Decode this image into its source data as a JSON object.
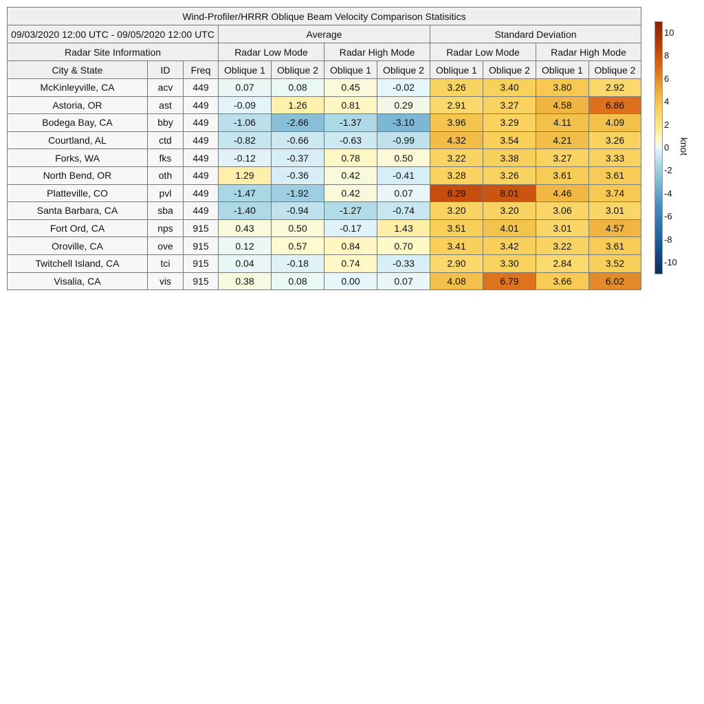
{
  "chart_data": {
    "type": "heatmap",
    "title": "Wind-Profiler/HRRR Oblique Beam Velocity Comparison Statisitics",
    "period": "09/03/2020 12:00 UTC - 09/05/2020 12:00 UTC",
    "group_headers": [
      "Average",
      "Standard Deviation"
    ],
    "mode_headers": [
      "Radar Low Mode",
      "Radar High Mode",
      "Radar Low Mode",
      "Radar High Mode"
    ],
    "info_header": "Radar Site Information",
    "column_headers": [
      "City & State",
      "ID",
      "Freq",
      "Oblique 1",
      "Oblique 2",
      "Oblique 1",
      "Oblique 2",
      "Oblique 1",
      "Oblique 2",
      "Oblique 1",
      "Oblique 2"
    ],
    "rows": [
      {
        "city": "McKinleyville, CA",
        "id": "acv",
        "freq": "449",
        "values": [
          "0.07",
          "0.08",
          "0.45",
          "-0.02",
          "3.26",
          "3.40",
          "3.80",
          "2.92"
        ]
      },
      {
        "city": "Astoria, OR",
        "id": "ast",
        "freq": "449",
        "values": [
          "-0.09",
          "1.26",
          "0.81",
          "0.29",
          "2.91",
          "3.27",
          "4.58",
          "6.86"
        ]
      },
      {
        "city": "Bodega Bay, CA",
        "id": "bby",
        "freq": "449",
        "values": [
          "-1.06",
          "-2.66",
          "-1.37",
          "-3.10",
          "3.96",
          "3.29",
          "4.11",
          "4.09"
        ]
      },
      {
        "city": "Courtland, AL",
        "id": "ctd",
        "freq": "449",
        "values": [
          "-0.82",
          "-0.66",
          "-0.63",
          "-0.99",
          "4.32",
          "3.54",
          "4.21",
          "3.26"
        ]
      },
      {
        "city": "Forks, WA",
        "id": "fks",
        "freq": "449",
        "values": [
          "-0.12",
          "-0.37",
          "0.78",
          "0.50",
          "3.22",
          "3.38",
          "3.27",
          "3.33"
        ]
      },
      {
        "city": "North Bend, OR",
        "id": "oth",
        "freq": "449",
        "values": [
          "1.29",
          "-0.36",
          "0.42",
          "-0.41",
          "3.28",
          "3.26",
          "3.61",
          "3.61"
        ]
      },
      {
        "city": "Platteville, CO",
        "id": "pvl",
        "freq": "449",
        "values": [
          "-1.47",
          "-1.92",
          "0.42",
          "0.07",
          "8.29",
          "8.01",
          "4.46",
          "3.74"
        ]
      },
      {
        "city": "Santa Barbara, CA",
        "id": "sba",
        "freq": "449",
        "values": [
          "-1.40",
          "-0.94",
          "-1.27",
          "-0.74",
          "3.20",
          "3.20",
          "3.06",
          "3.01"
        ]
      },
      {
        "city": "Fort Ord, CA",
        "id": "nps",
        "freq": "915",
        "values": [
          "0.43",
          "0.50",
          "-0.17",
          "1.43",
          "3.51",
          "4.01",
          "3.01",
          "4.57"
        ]
      },
      {
        "city": "Oroville, CA",
        "id": "ove",
        "freq": "915",
        "values": [
          "0.12",
          "0.57",
          "0.84",
          "0.70",
          "3.41",
          "3.42",
          "3.22",
          "3.61"
        ]
      },
      {
        "city": "Twitchell Island, CA",
        "id": "tci",
        "freq": "915",
        "values": [
          "0.04",
          "-0.18",
          "0.74",
          "-0.33",
          "2.90",
          "3.30",
          "2.84",
          "3.52"
        ]
      },
      {
        "city": "Visalia, CA",
        "id": "vis",
        "freq": "915",
        "values": [
          "0.38",
          "0.08",
          "0.00",
          "0.07",
          "4.08",
          "6.79",
          "3.66",
          "6.02"
        ]
      }
    ],
    "colorbar": {
      "unit": "knot",
      "range": [
        -11,
        11
      ],
      "ticks": [
        "10",
        "8",
        "6",
        "4",
        "2",
        "0",
        "-2",
        "-4",
        "-6",
        "-8",
        "-10"
      ],
      "tick_values": [
        10,
        8,
        6,
        4,
        2,
        0,
        -2,
        -4,
        -6,
        -8,
        -10
      ],
      "colormap": [
        {
          "v": -11,
          "c": "#0c2d5a"
        },
        {
          "v": -8,
          "c": "#1f5f9a"
        },
        {
          "v": -5,
          "c": "#4a8fc0"
        },
        {
          "v": -3,
          "c": "#7fb9d6"
        },
        {
          "v": -1.5,
          "c": "#a9d6e5"
        },
        {
          "v": 0,
          "c": "#e6f6fb"
        },
        {
          "v": 0.6,
          "c": "#fffacd"
        },
        {
          "v": 2,
          "c": "#fde58a"
        },
        {
          "v": 3.5,
          "c": "#f8cf58"
        },
        {
          "v": 5,
          "c": "#ecab36"
        },
        {
          "v": 7,
          "c": "#db6c1a"
        },
        {
          "v": 9,
          "c": "#bb3c06"
        },
        {
          "v": 11,
          "c": "#862004"
        }
      ]
    }
  }
}
